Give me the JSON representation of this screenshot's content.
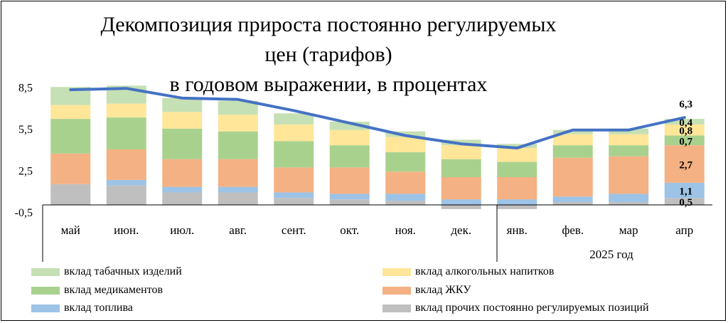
{
  "chart_data": {
    "type": "bar",
    "stacked": true,
    "title_lines": [
      "Декомпозиция прироста постоянно регулируемых",
      "цен (тарифов)",
      "в годовом выражении, в процентах"
    ],
    "categories": [
      "май",
      "июн.",
      "июл.",
      "авг.",
      "сент.",
      "окт.",
      "ноя.",
      "дек.",
      "янв.",
      "фев.",
      "мар",
      "апр"
    ],
    "year_label": "2025 год",
    "y_ticks": [
      "8,5",
      "5,5",
      "2,5",
      "-0,5"
    ],
    "ylim": [
      -0.5,
      8.5
    ],
    "series": [
      {
        "name": "вклад прочих постоянно регулируемых позиций",
        "color": "#bfbfbf",
        "values": [
          1.5,
          1.4,
          0.9,
          0.9,
          0.5,
          0.4,
          0.3,
          -0.3,
          -0.3,
          0.2,
          0.2,
          0.5
        ]
      },
      {
        "name": "вклад топлива",
        "color": "#9dc3e6",
        "values": [
          0.0,
          0.4,
          0.4,
          0.4,
          0.4,
          0.4,
          0.5,
          0.4,
          0.4,
          0.4,
          0.6,
          1.1
        ]
      },
      {
        "name": "вклад ЖКУ",
        "color": "#f4b183",
        "values": [
          2.2,
          2.2,
          2.0,
          2.0,
          1.8,
          1.9,
          1.6,
          1.6,
          1.6,
          2.8,
          2.7,
          2.7
        ]
      },
      {
        "name": "вклад медикаментов",
        "color": "#a9d18e",
        "values": [
          2.5,
          2.3,
          2.2,
          2.0,
          1.9,
          1.6,
          1.4,
          1.3,
          1.1,
          0.9,
          0.8,
          0.7
        ]
      },
      {
        "name": "вклад алкогольных напитков",
        "color": "#ffe699",
        "values": [
          1.0,
          1.0,
          1.2,
          1.2,
          1.2,
          1.1,
          1.1,
          1.0,
          1.0,
          0.8,
          0.8,
          0.8
        ]
      },
      {
        "name": "вклад табачных изделий",
        "color": "#c5e0b4",
        "values": [
          1.3,
          1.3,
          1.0,
          1.0,
          0.8,
          0.6,
          0.4,
          0.4,
          0.3,
          0.3,
          0.4,
          0.4
        ]
      }
    ],
    "line": {
      "name": "total",
      "color": "#4472c4",
      "values": [
        8.3,
        8.4,
        7.7,
        7.6,
        6.8,
        5.9,
        5.0,
        4.4,
        4.1,
        5.4,
        5.4,
        6.3
      ]
    },
    "labels_last_bar": [
      {
        "series": 0,
        "text": "0,5"
      },
      {
        "series": 1,
        "text": "1,1"
      },
      {
        "series": 2,
        "text": "2,7"
      },
      {
        "series": 3,
        "text": "0,7"
      },
      {
        "series": 4,
        "text": "0,8"
      },
      {
        "series": 5,
        "text": "0,4"
      },
      {
        "total": true,
        "text": "6,3"
      }
    ]
  },
  "legend": [
    {
      "label": "вклад табачных изделий",
      "color": "#c5e0b4"
    },
    {
      "label": "вклад алкогольных напитков",
      "color": "#ffe699"
    },
    {
      "label": "вклад медикаментов",
      "color": "#a9d18e"
    },
    {
      "label": "вклад ЖКУ",
      "color": "#f4b183"
    },
    {
      "label": "вклад топлива",
      "color": "#9dc3e6"
    },
    {
      "label": "вклад прочих постоянно регулируемых позиций",
      "color": "#bfbfbf"
    }
  ]
}
